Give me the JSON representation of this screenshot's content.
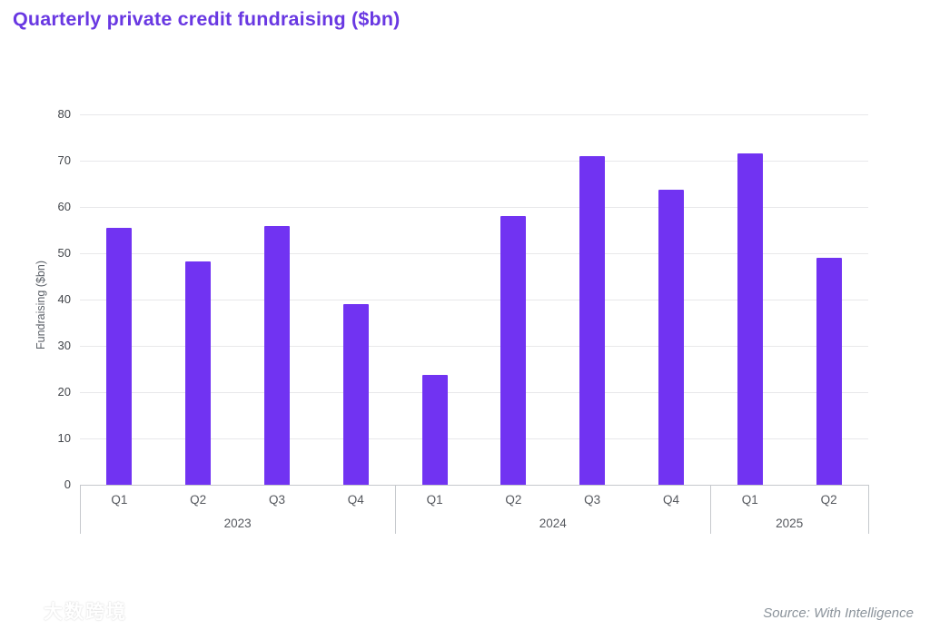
{
  "header": {
    "title": "Quarterly private credit fundraising ($bn)"
  },
  "chart_data": {
    "type": "bar",
    "title": "Quarterly private credit fundraising ($bn)",
    "ylabel": "Fundraising ($bn)",
    "xlabel": "",
    "ylim": [
      0,
      80
    ],
    "ytick_step": 10,
    "grid": "horizontal",
    "legend": "none",
    "bar_color": "#7133F2",
    "groups": [
      {
        "year": "2023",
        "categories": [
          "Q1",
          "Q2",
          "Q3",
          "Q4"
        ],
        "values": [
          55.5,
          48.2,
          55.8,
          39.0
        ]
      },
      {
        "year": "2024",
        "categories": [
          "Q1",
          "Q2",
          "Q3",
          "Q4"
        ],
        "values": [
          23.8,
          58.0,
          71.0,
          63.7
        ]
      },
      {
        "year": "2025",
        "categories": [
          "Q1",
          "Q2"
        ],
        "values": [
          71.6,
          49.1
        ]
      }
    ]
  },
  "footer": {
    "source": "Source: With Intelligence",
    "watermark_text": "大数跨境"
  },
  "colors": {
    "title": "#6938E2",
    "bar": "#7133F2",
    "gridline": "#e8e8ea",
    "axis_line": "#c6c9cd"
  }
}
